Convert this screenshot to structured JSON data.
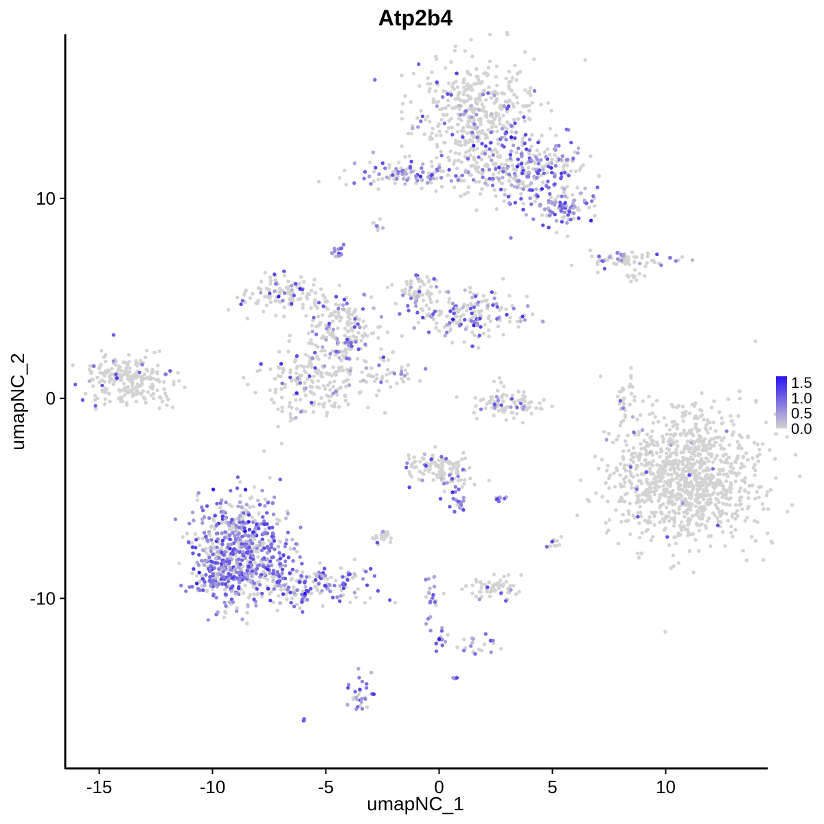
{
  "chart_data": {
    "type": "scatter",
    "title": "Atp2b4",
    "xlabel": "umapNC_1",
    "ylabel": "umapNC_2",
    "xlim": [
      -16.5,
      14.5
    ],
    "ylim": [
      -18.5,
      18.2
    ],
    "x_ticks": [
      -15,
      -10,
      -5,
      0,
      5,
      10
    ],
    "x_tick_labels": [
      "-15",
      "-10",
      "-5",
      "0",
      "5",
      "10"
    ],
    "y_ticks": [
      -10,
      0,
      10
    ],
    "y_tick_labels": [
      "-10",
      "0",
      "10"
    ],
    "color_scale": {
      "low": "#d3d3d3",
      "high": "#2a14f0",
      "range": [
        0,
        1.7
      ],
      "ticks": [
        0.0,
        0.5,
        1.0,
        1.5
      ],
      "tick_labels": [
        "0.0",
        "0.5",
        "1.0",
        "1.5"
      ],
      "legend_placement": "right"
    },
    "clusters": [
      {
        "label": "top-right upper",
        "cx": 1.5,
        "cy": 14.3,
        "sx": 1.3,
        "sy": 1.3,
        "n": 420,
        "expr": 0.12
      },
      {
        "label": "top-right lower arm",
        "cx": 4.3,
        "cy": 11.4,
        "sx": 1.0,
        "sy": 1.0,
        "n": 220,
        "expr": 0.6
      },
      {
        "label": "top-right knob",
        "cx": 5.5,
        "cy": 9.6,
        "sx": 0.6,
        "sy": 0.5,
        "n": 90,
        "expr": 0.65
      },
      {
        "label": "top-middle arm",
        "cx": -1.5,
        "cy": 11.2,
        "sx": 1.3,
        "sy": 0.35,
        "n": 110,
        "expr": 0.45
      },
      {
        "label": "top stem",
        "cx": 2.2,
        "cy": 11.2,
        "sx": 0.9,
        "sy": 0.7,
        "n": 90,
        "expr": 0.25
      },
      {
        "label": "small top",
        "cx": -2.8,
        "cy": 8.6,
        "sx": 0.2,
        "sy": 0.2,
        "n": 10,
        "expr": 0.2
      },
      {
        "label": "tiny purple",
        "cx": -4.5,
        "cy": 7.3,
        "sx": 0.15,
        "sy": 0.2,
        "n": 14,
        "expr": 1.2
      },
      {
        "label": "right thin",
        "cx": 8.3,
        "cy": 6.9,
        "sx": 1.1,
        "sy": 0.2,
        "n": 70,
        "expr": 0.3
      },
      {
        "label": "right thin tail",
        "cx": 8.8,
        "cy": 6.1,
        "sx": 0.3,
        "sy": 0.2,
        "n": 10,
        "expr": 0.1
      },
      {
        "label": "center left arm",
        "cx": -7.0,
        "cy": 5.2,
        "sx": 0.9,
        "sy": 0.5,
        "n": 120,
        "expr": 0.15
      },
      {
        "label": "center hub",
        "cx": -4.2,
        "cy": 3.5,
        "sx": 0.9,
        "sy": 0.9,
        "n": 170,
        "expr": 0.25
      },
      {
        "label": "center right arm",
        "cx": 1.6,
        "cy": 4.2,
        "sx": 1.2,
        "sy": 0.6,
        "n": 170,
        "expr": 0.4
      },
      {
        "label": "center up arm",
        "cx": -1.0,
        "cy": 5.3,
        "sx": 0.5,
        "sy": 0.6,
        "n": 70,
        "expr": 0.3
      },
      {
        "label": "center bottom",
        "cx": -5.5,
        "cy": 0.8,
        "sx": 1.3,
        "sy": 0.9,
        "n": 220,
        "expr": 0.15
      },
      {
        "label": "center streak",
        "cx": -2.0,
        "cy": 1.2,
        "sx": 0.6,
        "sy": 0.25,
        "n": 25,
        "expr": 0.3
      },
      {
        "label": "far left",
        "cx": -13.8,
        "cy": 0.9,
        "sx": 1.0,
        "sy": 0.6,
        "n": 240,
        "expr": 0.05
      },
      {
        "label": "arc middle",
        "cx": 3.0,
        "cy": -0.3,
        "sx": 0.8,
        "sy": 0.4,
        "n": 90,
        "expr": 0.2
      },
      {
        "label": "vertical thin right",
        "cx": 8.2,
        "cy": -0.1,
        "sx": 0.2,
        "sy": 0.7,
        "n": 30,
        "expr": 0.15
      },
      {
        "label": "big right",
        "cx": 10.9,
        "cy": -4.0,
        "sx": 1.6,
        "sy": 1.6,
        "n": 1050,
        "expr": 0.02
      },
      {
        "label": "middle cluster",
        "cx": 0.0,
        "cy": -3.5,
        "sx": 0.8,
        "sy": 0.45,
        "n": 120,
        "expr": 0.12
      },
      {
        "label": "middle tail",
        "cx": 0.9,
        "cy": -5.0,
        "sx": 0.2,
        "sy": 0.5,
        "n": 25,
        "expr": 0.7
      },
      {
        "label": "middle lower",
        "cx": -2.5,
        "cy": -6.9,
        "sx": 0.3,
        "sy": 0.15,
        "n": 25,
        "expr": 0.15
      },
      {
        "label": "lower left body",
        "cx": -8.6,
        "cy": -7.6,
        "sx": 1.0,
        "sy": 1.3,
        "n": 600,
        "expr": 0.6
      },
      {
        "label": "lower left wing",
        "cx": -9.8,
        "cy": -8.8,
        "sx": 0.6,
        "sy": 0.6,
        "n": 150,
        "expr": 0.55
      },
      {
        "label": "lower left arm",
        "cx": -5.8,
        "cy": -9.3,
        "sx": 1.4,
        "sy": 0.5,
        "n": 180,
        "expr": 0.55
      },
      {
        "label": "right small 1",
        "cx": 2.7,
        "cy": -5.0,
        "sx": 0.15,
        "sy": 0.1,
        "n": 8,
        "expr": 0.8
      },
      {
        "label": "right small 2",
        "cx": 5.0,
        "cy": -7.3,
        "sx": 0.15,
        "sy": 0.25,
        "n": 12,
        "expr": 0.2
      },
      {
        "label": "right lower",
        "cx": 2.3,
        "cy": -9.5,
        "sx": 0.7,
        "sy": 0.3,
        "n": 60,
        "expr": 0.05
      },
      {
        "label": "middle vertical",
        "cx": -0.4,
        "cy": -10.0,
        "sx": 0.15,
        "sy": 0.6,
        "n": 20,
        "expr": 0.9
      },
      {
        "label": "middle vertical low",
        "cx": 0.0,
        "cy": -12.0,
        "sx": 0.2,
        "sy": 0.3,
        "n": 15,
        "expr": 0.8
      },
      {
        "label": "lower streak",
        "cx": 1.6,
        "cy": -12.3,
        "sx": 0.6,
        "sy": 0.3,
        "n": 20,
        "expr": 0.7
      },
      {
        "label": "lower small",
        "cx": -3.5,
        "cy": -14.8,
        "sx": 0.25,
        "sy": 0.5,
        "n": 30,
        "expr": 0.6
      },
      {
        "label": "tiny bottom",
        "cx": 0.7,
        "cy": -14.0,
        "sx": 0.05,
        "sy": 0.05,
        "n": 4,
        "expr": 1.2
      },
      {
        "label": "tiny bottom left",
        "cx": -6.0,
        "cy": -16.0,
        "sx": 0.05,
        "sy": 0.05,
        "n": 3,
        "expr": 0.8
      }
    ]
  }
}
